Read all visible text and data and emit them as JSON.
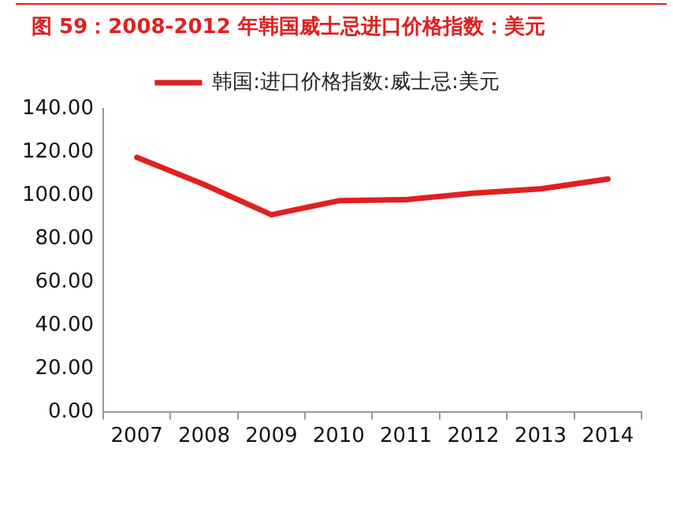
{
  "chart_data": {
    "type": "line",
    "title": "图 59：2008-2012 年韩国威士忌进口价格指数：美元",
    "categories": [
      "2007",
      "2008",
      "2009",
      "2010",
      "2011",
      "2012",
      "2013",
      "2014"
    ],
    "series": [
      {
        "name": "韩国:进口价格指数:威士忌:美元",
        "color": "#e02020",
        "values": [
          117.5,
          105,
          91,
          97.5,
          98,
          101,
          103,
          107.5
        ]
      }
    ],
    "ylim": [
      0,
      140
    ],
    "yticks": [
      {
        "value": 0,
        "label": "0.00"
      },
      {
        "value": 20,
        "label": "20.00"
      },
      {
        "value": 40,
        "label": "40.00"
      },
      {
        "value": 60,
        "label": "60.00"
      },
      {
        "value": 80,
        "label": "80.00"
      },
      {
        "value": 100,
        "label": "100.00"
      },
      {
        "value": 120,
        "label": "120.00"
      },
      {
        "value": 140,
        "label": "140.00"
      }
    ],
    "grid": false,
    "legend": "top",
    "marker": "none",
    "line_style": "solid"
  }
}
